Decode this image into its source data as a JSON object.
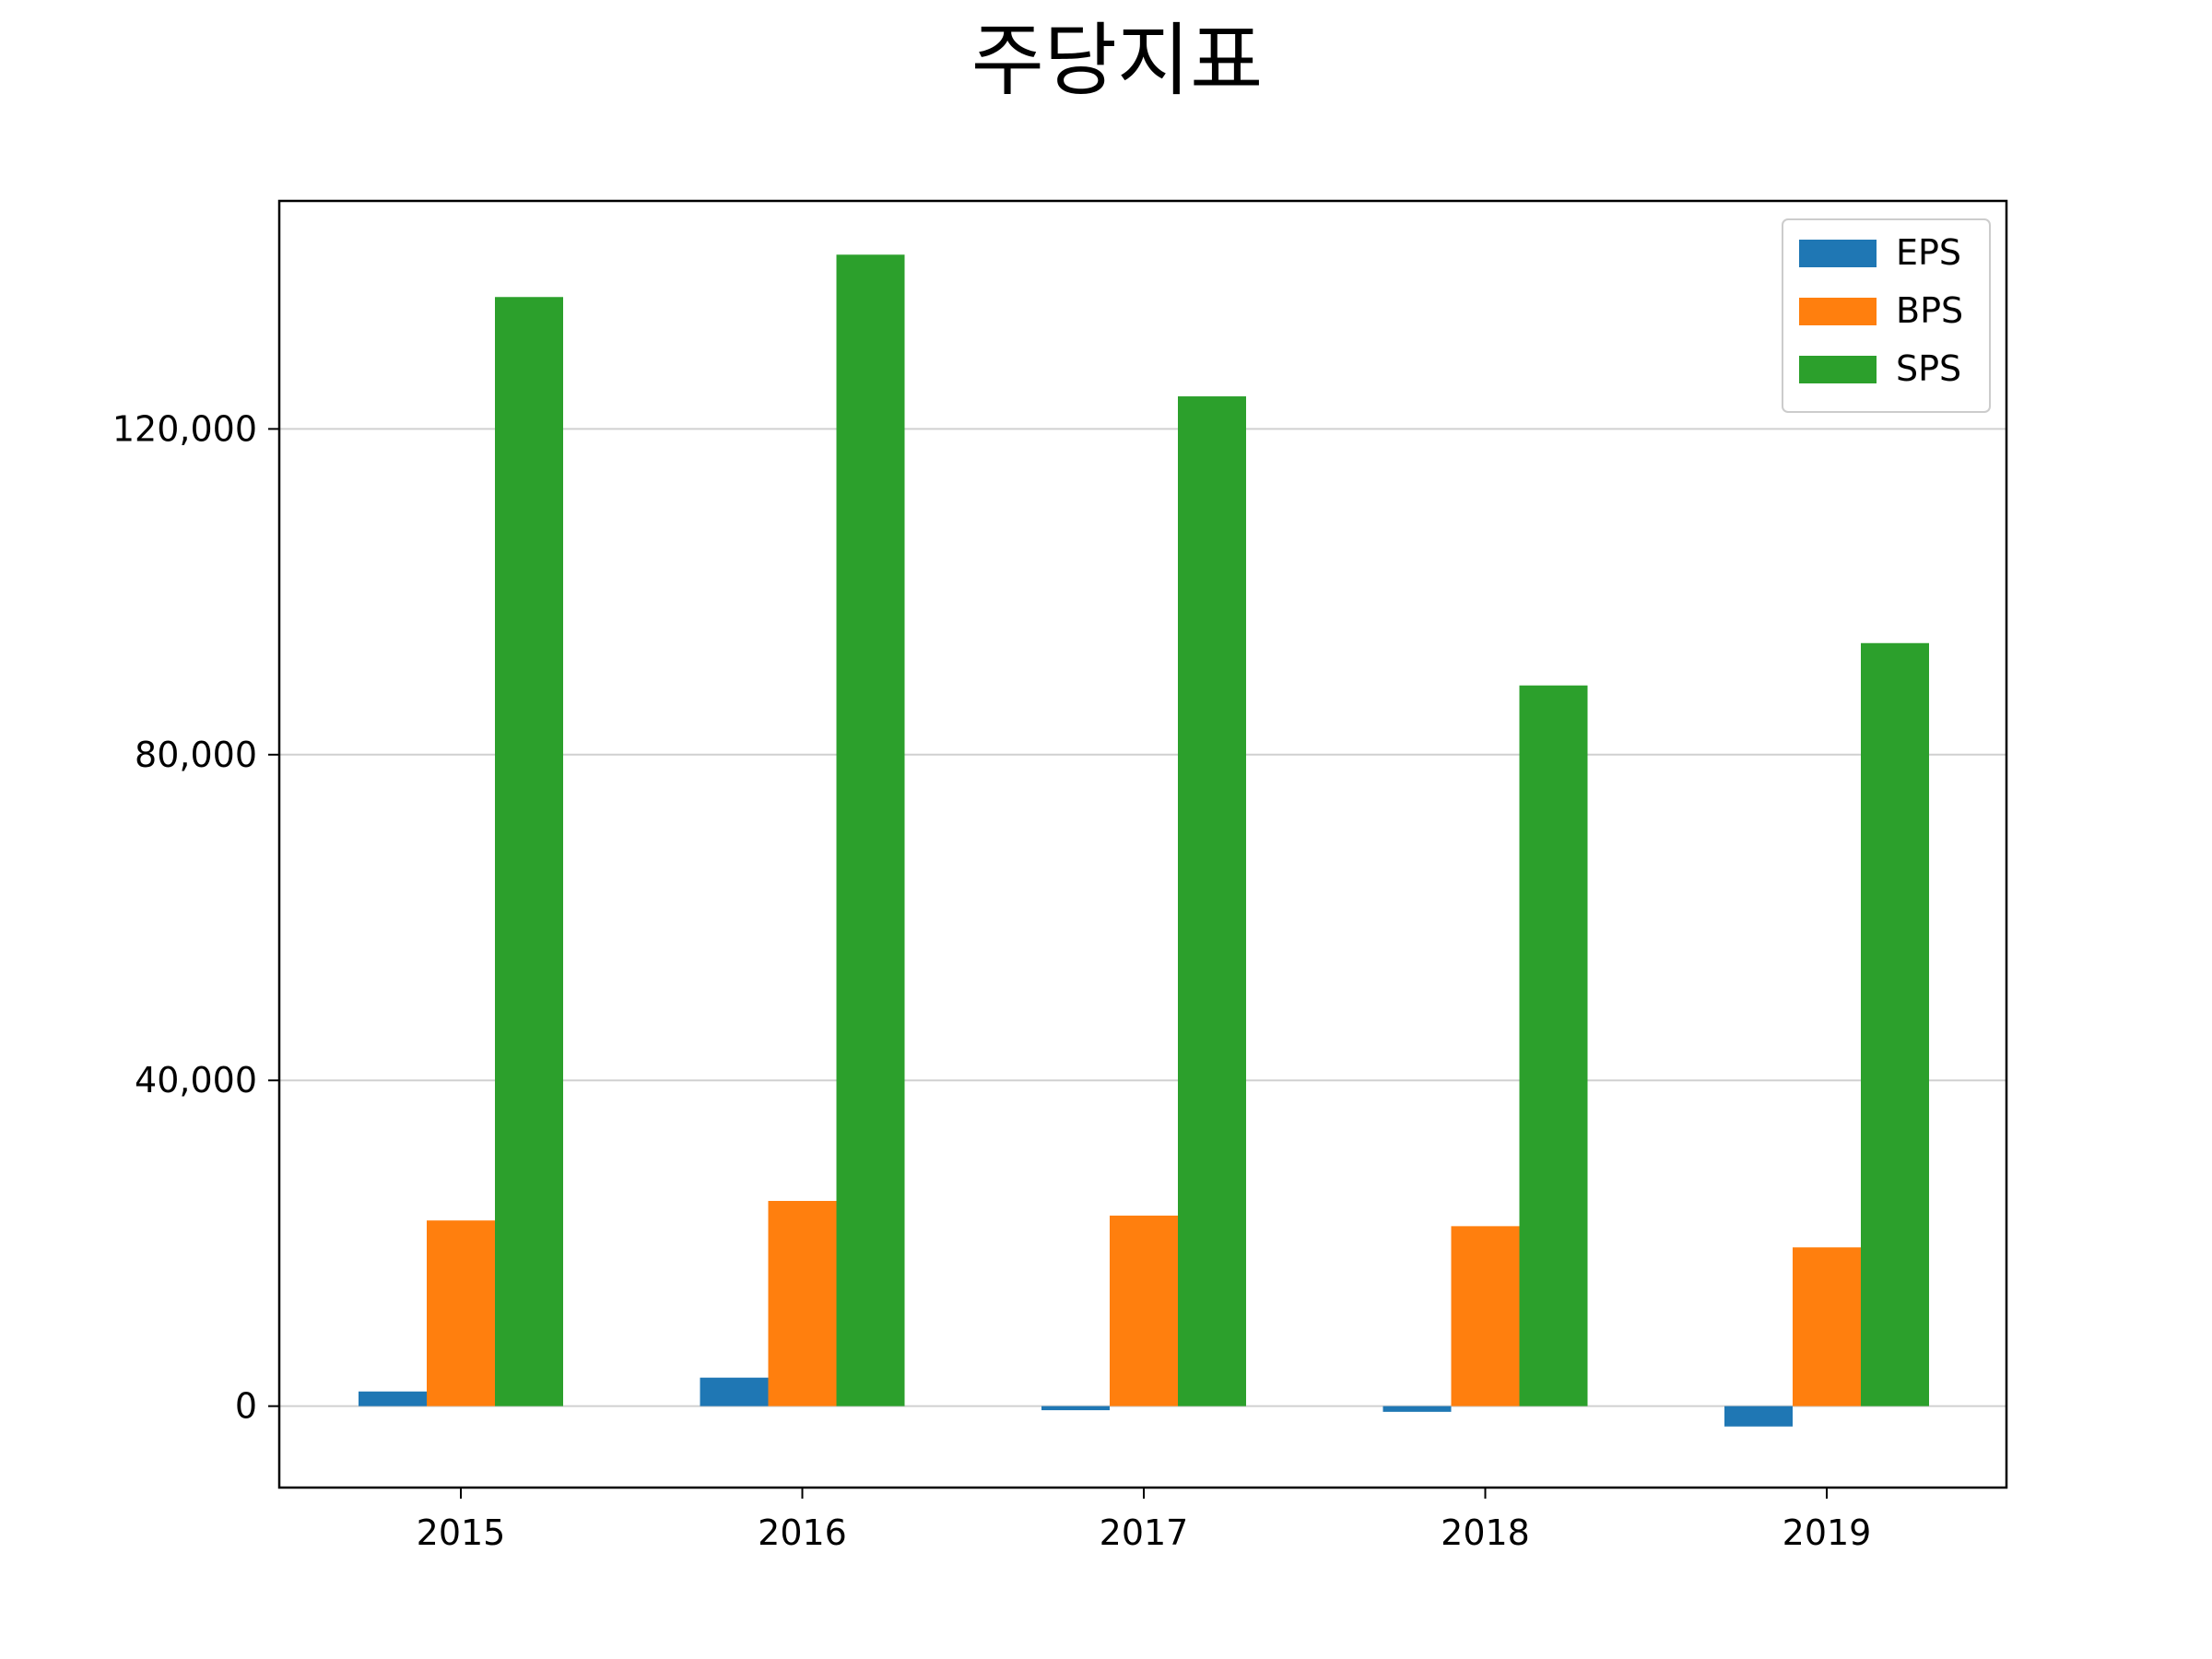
{
  "chart_data": {
    "type": "bar",
    "title": "주당지표",
    "categories": [
      "2015",
      "2016",
      "2017",
      "2018",
      "2019"
    ],
    "series": [
      {
        "name": "EPS",
        "color": "#1f77b4",
        "values": [
          1800,
          3500,
          -500,
          -700,
          -2500
        ]
      },
      {
        "name": "BPS",
        "color": "#ff7f0e",
        "values": [
          22800,
          25200,
          23400,
          22100,
          19500
        ]
      },
      {
        "name": "SPS",
        "color": "#2ca02c",
        "values": [
          136200,
          141400,
          124000,
          88500,
          93700
        ]
      }
    ],
    "ylim": [
      -10000,
      148000
    ],
    "yticks": [
      0,
      40000,
      80000,
      120000
    ],
    "ytick_labels": [
      "0",
      "40,000",
      "80,000",
      "120,000"
    ],
    "grid": "horizontal",
    "legend_position": "top-right",
    "xlabel": "",
    "ylabel": ""
  }
}
